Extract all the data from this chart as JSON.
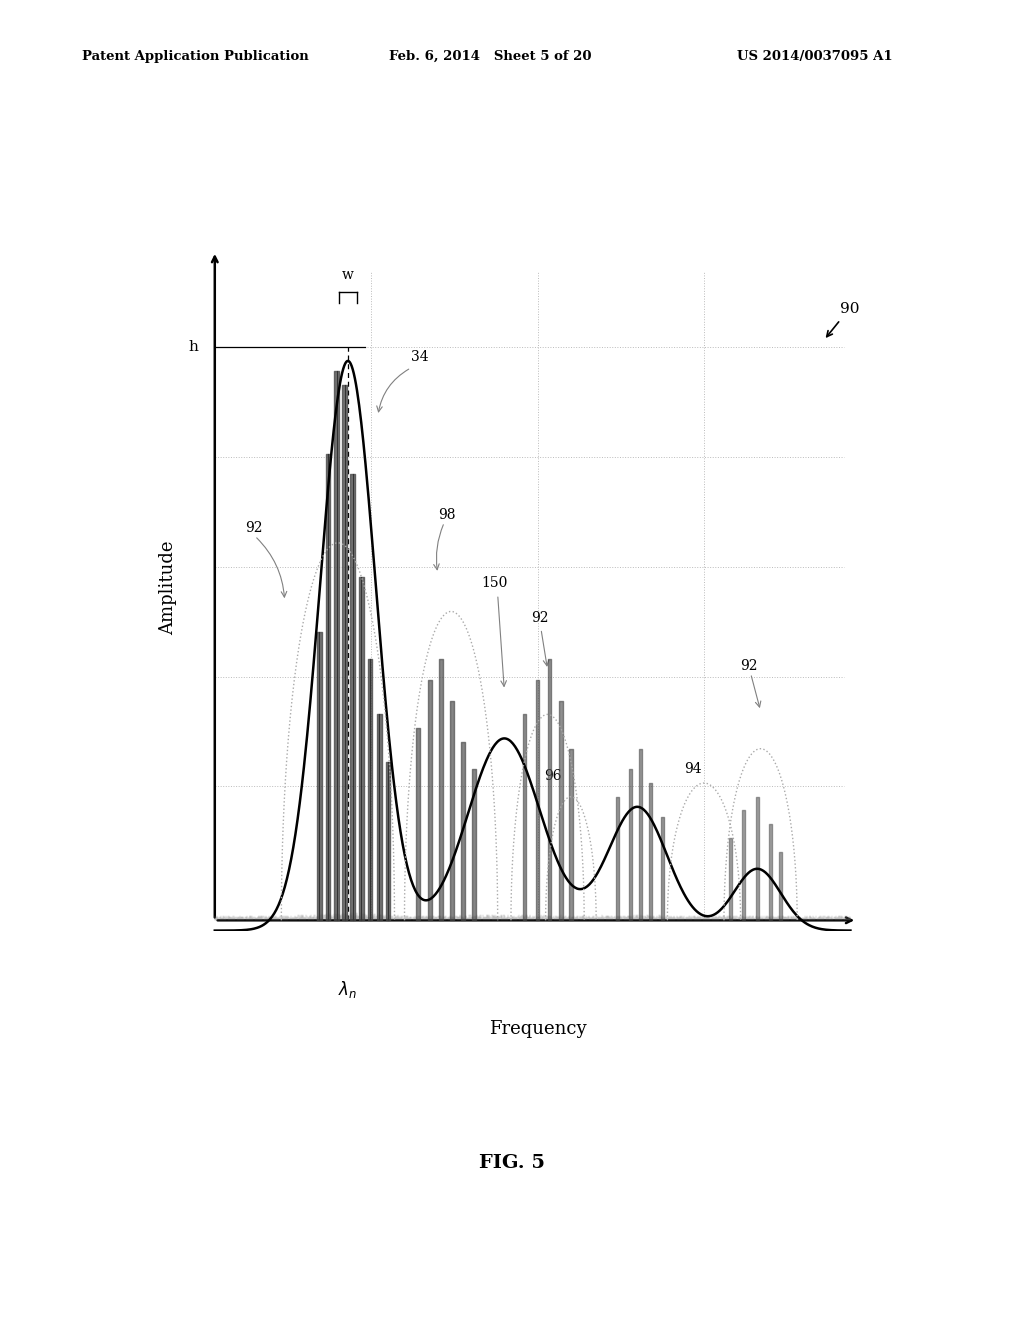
{
  "bg_color": "#ffffff",
  "header_left": "Patent Application Publication",
  "header_mid": "Feb. 6, 2014   Sheet 5 of 20",
  "header_right": "US 2014/0037095 A1",
  "fig_label": "FIG. 5",
  "ylabel": "Amplitude",
  "xlabel": "Frequency",
  "diagram_label": "90",
  "grid_color": "#bbbbbb",
  "curve_color": "#000000",
  "arc_color": "#aaaaaa",
  "spike_color": "#555555",
  "noise_color": "#777777"
}
